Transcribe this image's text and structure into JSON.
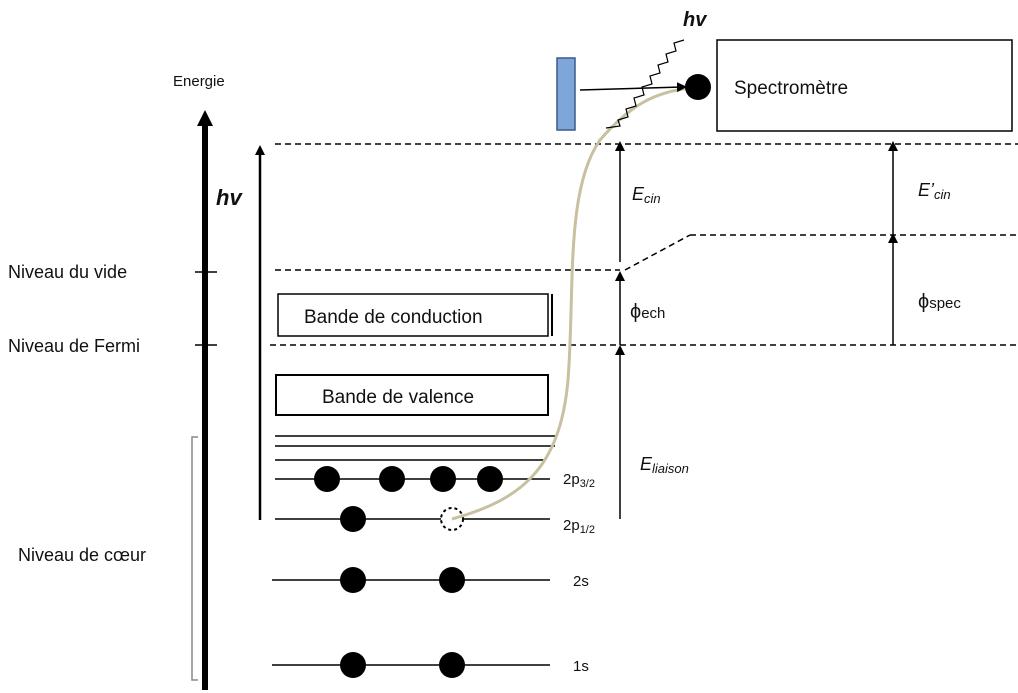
{
  "labels": {
    "energy": "Energie",
    "hv_photon": "hv",
    "hv_axis": "hv",
    "spectrometer": "Spectromètre",
    "vacuum_level": "Niveau du vide",
    "fermi_level": "Niveau de Fermi",
    "core_level": "Niveau de cœur",
    "conduction_band": "Bande de conduction",
    "valence_band": "Bande de valence",
    "e_cin": "E",
    "e_cin_sub": "cin",
    "e_cin_prime": "E’",
    "e_cin_prime_sub": "cin",
    "phi_ech": "ϕ",
    "phi_ech_sub": "ech",
    "phi_spec": "ϕ",
    "phi_spec_sub": "spec",
    "e_liaison": "E",
    "e_liaison_sub": "liaison",
    "orbital_2p32": "2p",
    "orbital_2p32_sub": "3/2",
    "orbital_2p12": "2p",
    "orbital_2p12_sub": "1/2",
    "orbital_2s": "2s",
    "orbital_1s": "1s"
  },
  "colors": {
    "line": "#000000",
    "sample": "#7ea6d8",
    "trajectory": "#c8c0a0"
  }
}
